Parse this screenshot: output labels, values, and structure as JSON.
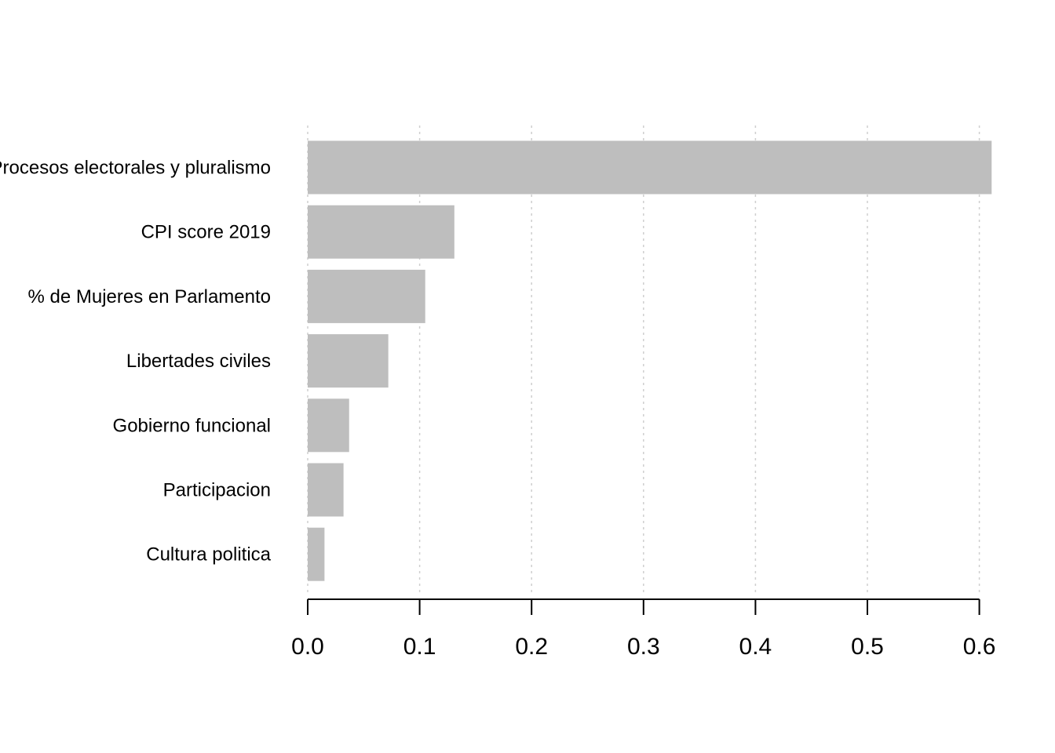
{
  "chart_data": {
    "type": "bar",
    "orientation": "horizontal",
    "categories": [
      "Procesos electorales y pluralismo",
      "CPI score 2019",
      "% de Mujeres en Parlamento",
      "Libertades civiles",
      "Gobierno funcional",
      "Participacion",
      "Cultura politica"
    ],
    "values": [
      0.611,
      0.131,
      0.105,
      0.072,
      0.037,
      0.032,
      0.015
    ],
    "xlim": [
      0,
      0.6
    ],
    "xticks": [
      "0.0",
      "0.1",
      "0.2",
      "0.3",
      "0.4",
      "0.5",
      "0.6"
    ],
    "grid": "vertical dotted",
    "bar_color": "#bebebe",
    "title": "",
    "xlabel": "",
    "ylabel": ""
  }
}
